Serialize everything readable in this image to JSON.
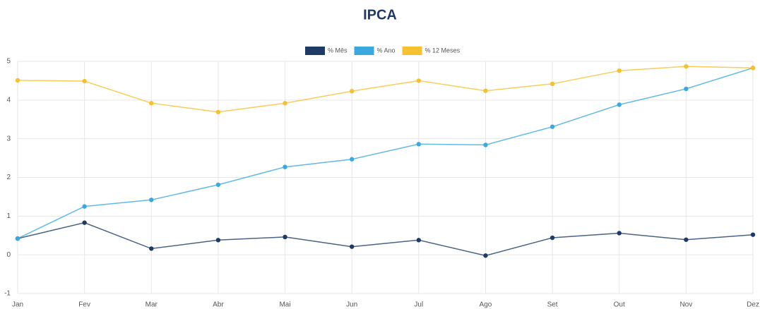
{
  "chart_data": {
    "type": "line",
    "title": "IPCA",
    "categories": [
      "Jan",
      "Fev",
      "Mar",
      "Abr",
      "Mai",
      "Jun",
      "Jul",
      "Ago",
      "Set",
      "Out",
      "Nov",
      "Dez"
    ],
    "series": [
      {
        "name": "% Mês",
        "color": "#1d3b66",
        "values": [
          0.42,
          0.83,
          0.16,
          0.38,
          0.46,
          0.21,
          0.38,
          -0.02,
          0.44,
          0.56,
          0.39,
          0.52
        ]
      },
      {
        "name": "% Ano",
        "color": "#3aa9df",
        "values": [
          0.42,
          1.25,
          1.42,
          1.81,
          2.27,
          2.47,
          2.86,
          2.84,
          3.31,
          3.88,
          4.29,
          4.83
        ]
      },
      {
        "name": "% 12 Meses",
        "color": "#f6c12f",
        "values": [
          4.51,
          4.49,
          3.92,
          3.69,
          3.92,
          4.23,
          4.5,
          4.24,
          4.42,
          4.76,
          4.87,
          4.83
        ]
      }
    ],
    "ylim": [
      -1,
      5
    ],
    "yticks": [
      -1,
      0,
      1,
      2,
      3,
      4,
      5
    ],
    "grid": true,
    "legend": "top"
  }
}
